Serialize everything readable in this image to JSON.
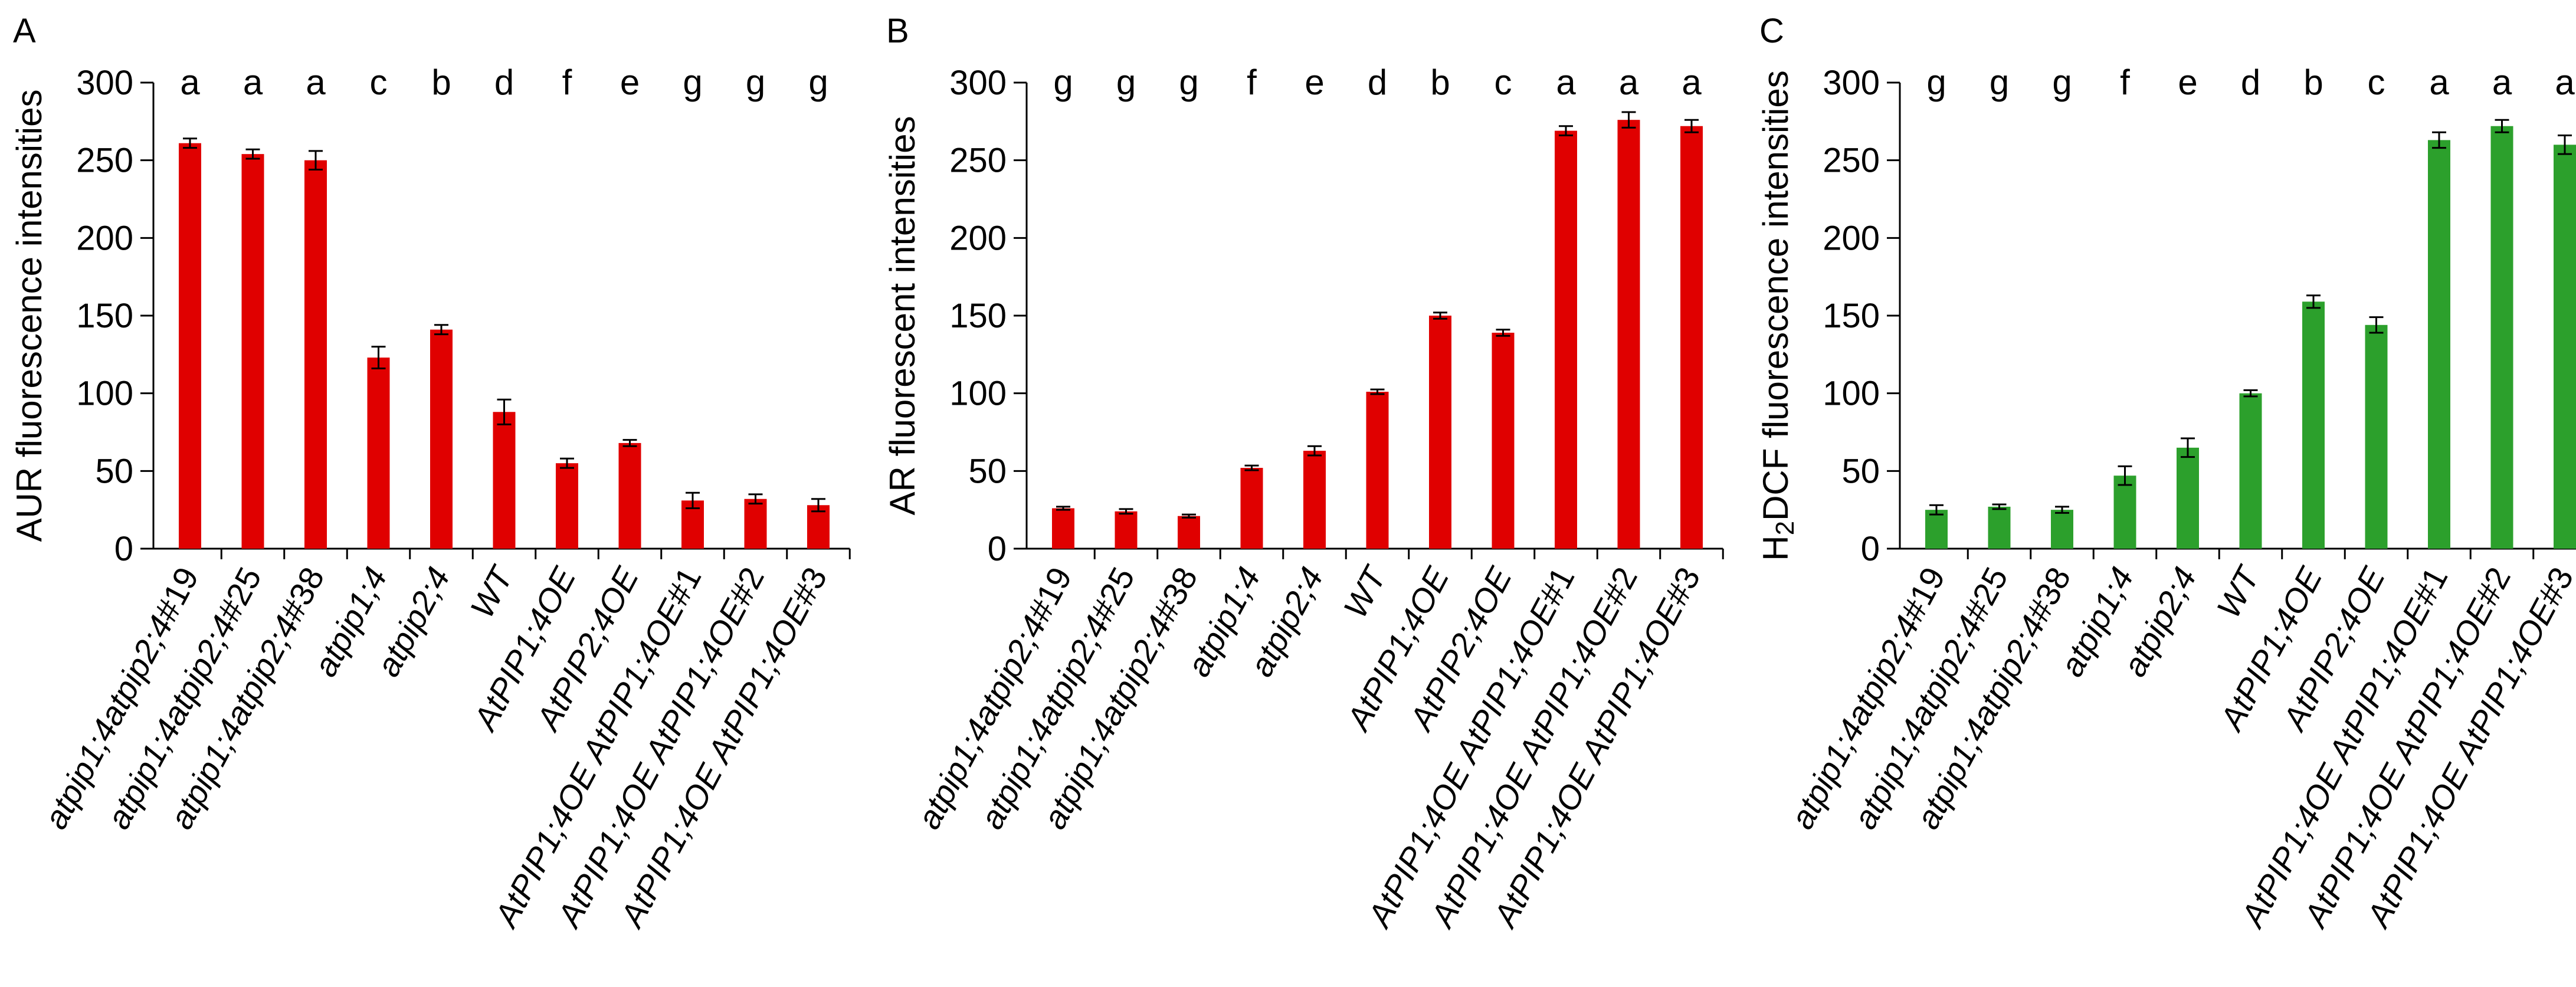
{
  "chart_data": [
    {
      "type": "bar",
      "panel_label": "A",
      "ylabel": "AUR fluorescence intensities",
      "ylim": [
        0,
        300
      ],
      "yticks": [
        0,
        50,
        100,
        150,
        200,
        250,
        300
      ],
      "color": "#e00000",
      "categories": [
        {
          "stem": "atpip1;4atpip2;4",
          "suffix": "#19"
        },
        {
          "stem": "atpip1;4atpip2;4",
          "suffix": "#25"
        },
        {
          "stem": "atpip1;4atpip2;4",
          "suffix": "#38"
        },
        {
          "stem": "atpip1;4",
          "suffix": ""
        },
        {
          "stem": "atpip2;4",
          "suffix": ""
        },
        {
          "stem": "WT",
          "suffix": ""
        },
        {
          "stem": "AtPIP1;4OE",
          "suffix": ""
        },
        {
          "stem": "AtPIP2;4OE",
          "suffix": ""
        },
        {
          "stem": "AtPIP1;4OE AtPIP1;4OE",
          "suffix": "#1"
        },
        {
          "stem": "AtPIP1;4OE AtPIP1;4OE",
          "suffix": "#2"
        },
        {
          "stem": "AtPIP1;4OE AtPIP1;4OE",
          "suffix": "#3"
        }
      ],
      "values": [
        261,
        254,
        250,
        123,
        141,
        88,
        55,
        68,
        31,
        32,
        28
      ],
      "errors": [
        3,
        3,
        6,
        7,
        3,
        8,
        3,
        2,
        5,
        3,
        4
      ],
      "significance": [
        "a",
        "a",
        "a",
        "c",
        "b",
        "d",
        "f",
        "e",
        "g",
        "g",
        "g"
      ]
    },
    {
      "type": "bar",
      "panel_label": "B",
      "ylabel": "AR fluorescent intensities",
      "ylim": [
        0,
        300
      ],
      "yticks": [
        0,
        50,
        100,
        150,
        200,
        250,
        300
      ],
      "color": "#e00000",
      "categories": [
        {
          "stem": "atpip1;4atpip2;4",
          "suffix": "#19"
        },
        {
          "stem": "atpip1;4atpip2;4",
          "suffix": "#25"
        },
        {
          "stem": "atpip1;4atpip2;4",
          "suffix": "#38"
        },
        {
          "stem": "atpip1;4",
          "suffix": ""
        },
        {
          "stem": "atpip2;4",
          "suffix": ""
        },
        {
          "stem": "WT",
          "suffix": ""
        },
        {
          "stem": "AtPIP1;4OE",
          "suffix": ""
        },
        {
          "stem": "AtPIP2;4OE",
          "suffix": ""
        },
        {
          "stem": "AtPIP1;4OE AtPIP1;4OE",
          "suffix": "#1"
        },
        {
          "stem": "AtPIP1;4OE AtPIP1;4OE",
          "suffix": "#2"
        },
        {
          "stem": "AtPIP1;4OE AtPIP1;4OE",
          "suffix": "#3"
        }
      ],
      "values": [
        26,
        24,
        21,
        52,
        63,
        101,
        150,
        139,
        269,
        276,
        272
      ],
      "errors": [
        1,
        1.5,
        1,
        1.5,
        3,
        1.5,
        2,
        2,
        3,
        5,
        4
      ],
      "significance": [
        "g",
        "g",
        "g",
        "f",
        "e",
        "d",
        "b",
        "c",
        "a",
        "a",
        "a"
      ]
    },
    {
      "type": "bar",
      "panel_label": "C",
      "ylabel_main": "H",
      "ylabel_sub": "2",
      "ylabel_rest": "DCF fluorescence intensities",
      "ylim": [
        0,
        300
      ],
      "yticks": [
        0,
        50,
        100,
        150,
        200,
        250,
        300
      ],
      "color": "#2ca02c",
      "categories": [
        {
          "stem": "atpip1;4atpip2;4",
          "suffix": "#19"
        },
        {
          "stem": "atpip1;4atpip2;4",
          "suffix": "#25"
        },
        {
          "stem": "atpip1;4atpip2;4",
          "suffix": "#38"
        },
        {
          "stem": "atpip1;4",
          "suffix": ""
        },
        {
          "stem": "atpip2;4",
          "suffix": ""
        },
        {
          "stem": "WT",
          "suffix": ""
        },
        {
          "stem": "AtPIP1;4OE",
          "suffix": ""
        },
        {
          "stem": "AtPIP2;4OE",
          "suffix": ""
        },
        {
          "stem": "AtPIP1;4OE AtPIP1;4OE",
          "suffix": "#1"
        },
        {
          "stem": "AtPIP1;4OE AtPIP1;4OE",
          "suffix": "#2"
        },
        {
          "stem": "AtPIP1;4OE AtPIP1;4OE",
          "suffix": "#3"
        }
      ],
      "values": [
        25,
        27,
        25,
        47,
        65,
        100,
        159,
        144,
        263,
        272,
        260
      ],
      "errors": [
        3,
        1.5,
        2,
        6,
        6,
        2,
        4,
        5,
        5,
        4,
        6
      ],
      "significance": [
        "g",
        "g",
        "g",
        "f",
        "e",
        "d",
        "b",
        "c",
        "a",
        "a",
        "a"
      ]
    }
  ]
}
